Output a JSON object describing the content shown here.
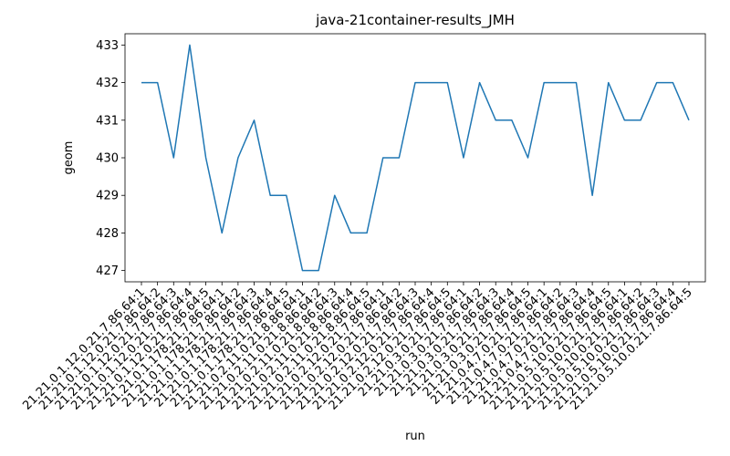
{
  "chart_data": {
    "type": "line",
    "title": "java-21container-results_JMH",
    "xlabel": "run",
    "ylabel": "geom",
    "ylim": [
      426.7,
      433.3
    ],
    "yticks": [
      427,
      428,
      429,
      430,
      431,
      432,
      433
    ],
    "grid": false,
    "line_color": "#1f77b4",
    "x": [
      "21.21.0.1.12.0.21.7.86.64:1",
      "21.21.0.1.12.0.21.7.86.64:2",
      "21.21.0.1.12.0.21.7.86.64:3",
      "21.21.0.1.12.0.21.7.86.64:4",
      "21.21.0.1.12.0.21.7.86.64:5",
      "21.21.0.1.178.21.7.86.64:1",
      "21.21.0.1.178.21.7.86.64:2",
      "21.21.0.1.178.21.7.86.64:3",
      "21.21.0.1.178.21.7.86.64:4",
      "21.21.0.1.178.21.7.86.64:5",
      "21.21.0.2.11.0.21.8.86.64:1",
      "21.21.0.2.11.0.21.8.86.64:2",
      "21.21.0.2.11.0.21.8.86.64:3",
      "21.21.0.2.11.0.21.8.86.64:4",
      "21.21.0.2.11.0.21.8.86.64:5",
      "21.21.0.2.12.0.21.7.86.64:1",
      "21.21.0.2.12.0.21.7.86.64:2",
      "21.21.0.2.12.0.21.7.86.64:3",
      "21.21.0.2.12.0.21.7.86.64:4",
      "21.21.0.2.12.0.21.7.86.64:5",
      "21.21.0.3.0.21.7.86.64:1",
      "21.21.0.3.0.21.7.86.64:2",
      "21.21.0.3.0.21.7.86.64:3",
      "21.21.0.3.0.21.7.86.64:4",
      "21.21.0.3.0.21.7.86.64:5",
      "21.21.0.4.7.0.21.7.86.64:1",
      "21.21.0.4.7.0.21.7.86.64:2",
      "21.21.0.4.7.0.21.7.86.64:3",
      "21.21.0.4.7.0.21.7.86.64:4",
      "21.21.0.5.10.0.21.7.86.64:5",
      "21.21.0.5.10.0.21.7.86.64:1",
      "21.21.0.5.10.0.21.7.86.64:2",
      "21.21.0.5.10.0.21.7.86.64:3",
      "21.21.0.5.10.0.21.7.86.64:4",
      "21.21.0.5.10.0.21.7.86.64:5"
    ],
    "series": [
      {
        "values": [
          432,
          432,
          430,
          433,
          430,
          428,
          430,
          431,
          429,
          429,
          427,
          427,
          429,
          428,
          428,
          430,
          430,
          432,
          432,
          432,
          430,
          432,
          431,
          431,
          430,
          432,
          432,
          432,
          429,
          432,
          431,
          431,
          432,
          432,
          431
        ]
      }
    ]
  }
}
